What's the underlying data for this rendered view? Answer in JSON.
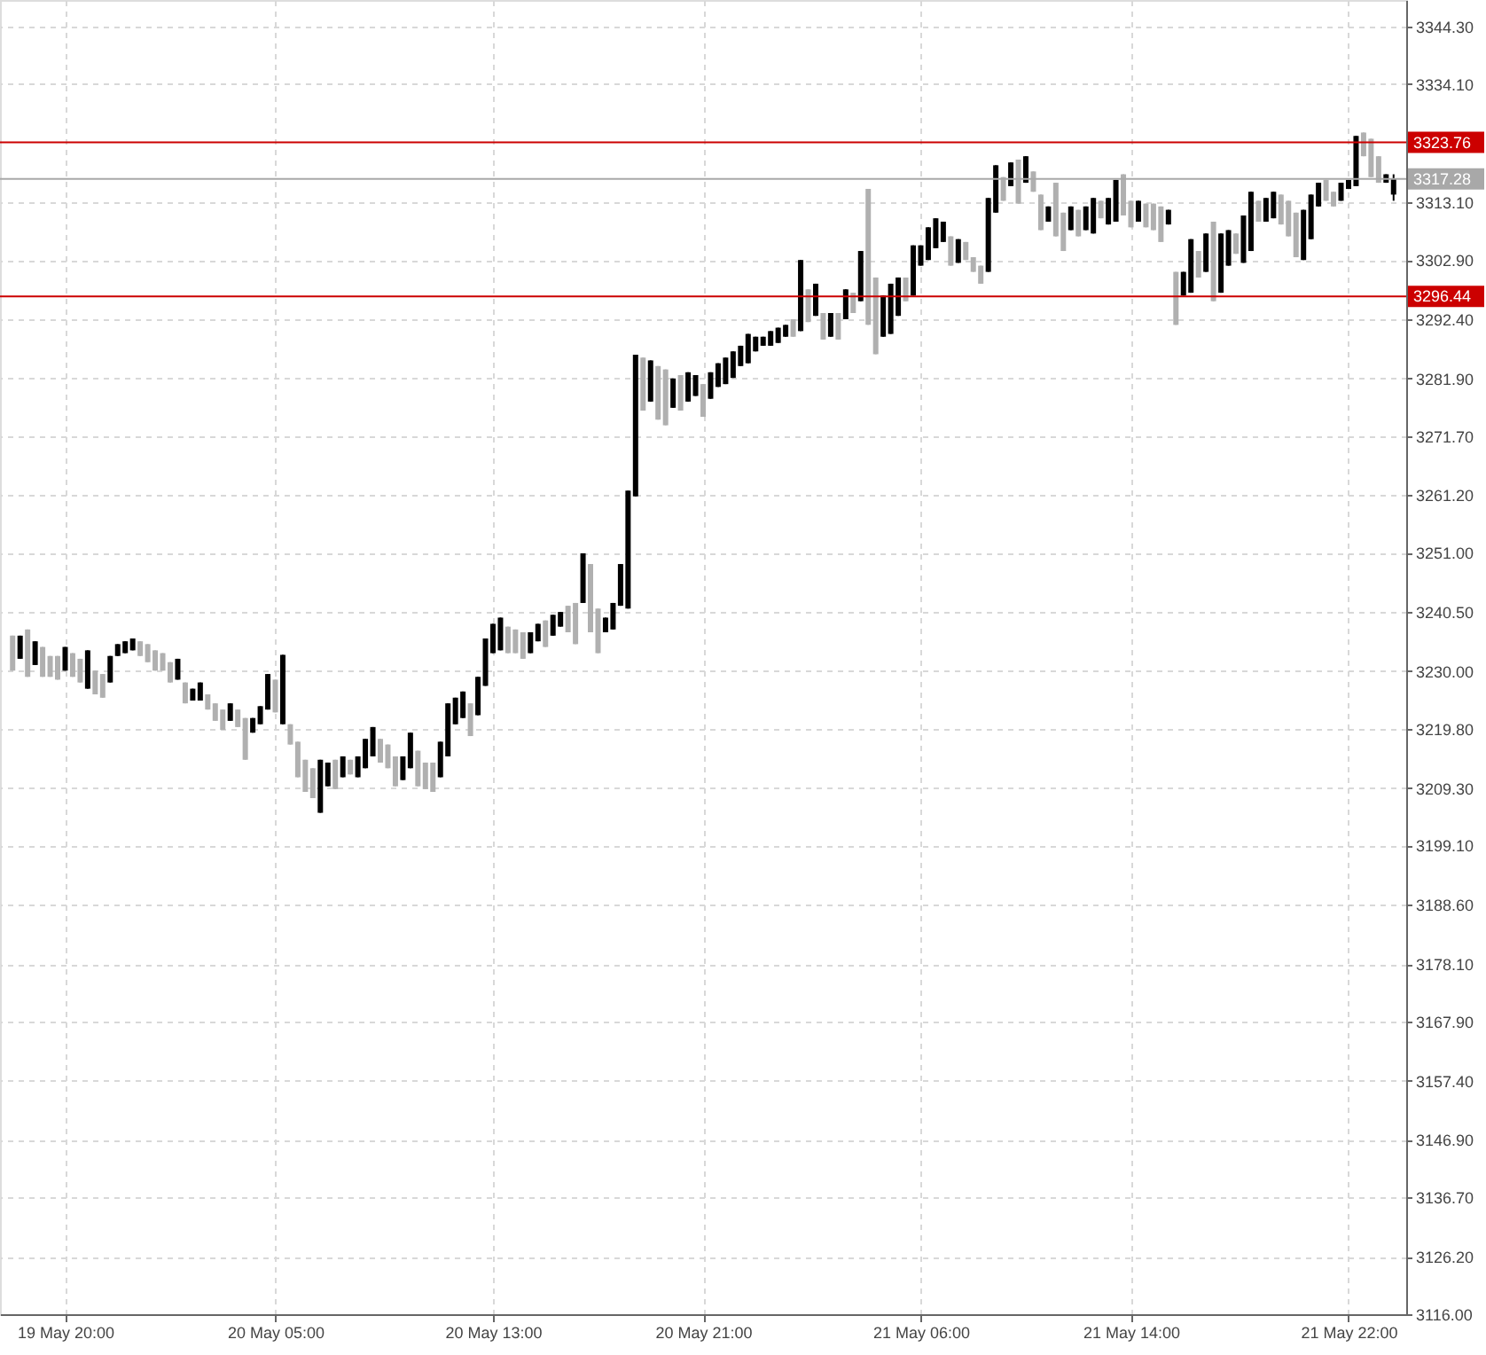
{
  "chart_data": {
    "type": "candlestick",
    "categories": [
      null,
      null,
      null,
      null,
      null,
      null,
      null,
      "19 May 20:00",
      null,
      null,
      null,
      null,
      null,
      null,
      null,
      null,
      null,
      null,
      null,
      null,
      null,
      null,
      null,
      null,
      null,
      null,
      null,
      null,
      null,
      null,
      null,
      null,
      null,
      null,
      null,
      "20 May 05:00",
      null,
      null,
      null,
      null,
      null,
      null,
      null,
      null,
      null,
      null,
      null,
      null,
      null,
      null,
      null,
      null,
      null,
      null,
      null,
      null,
      null,
      null,
      null,
      null,
      null,
      null,
      null,
      null,
      "20 May 13:00",
      null,
      null,
      null,
      null,
      null,
      null,
      null,
      null,
      null,
      null,
      null,
      null,
      null,
      null,
      null,
      null,
      null,
      null,
      null,
      null,
      null,
      null,
      null,
      null,
      null,
      null,
      null,
      "20 May 21:00",
      null,
      null,
      null,
      null,
      null,
      null,
      null,
      null,
      null,
      null,
      null,
      null,
      null,
      null,
      null,
      null,
      null,
      null,
      null,
      null,
      null,
      null,
      null,
      null,
      null,
      null,
      null,
      null,
      "21 May 06:00",
      null,
      null,
      null,
      null,
      null,
      null,
      null,
      null,
      null,
      null,
      null,
      null,
      null,
      null,
      null,
      null,
      null,
      null,
      null,
      null,
      null,
      null,
      null,
      null,
      null,
      null,
      null,
      "21 May 14:00",
      null,
      null,
      null,
      null,
      null,
      null,
      null,
      null,
      null,
      null,
      null,
      null,
      null,
      null,
      null,
      null,
      null,
      null,
      null,
      null,
      null,
      null,
      null,
      null,
      null,
      null,
      null,
      null,
      "21 May 22:00",
      null,
      null,
      null,
      null,
      null,
      null
    ],
    "ohlc": [
      [
        3236.3,
        3236.3,
        3230.1,
        3230.1
      ],
      [
        3232.2,
        3236.3,
        3232.2,
        3236.3
      ],
      [
        3237.4,
        3237.4,
        3229.0,
        3229.0
      ],
      [
        3231.1,
        3235.3,
        3231.1,
        3235.3
      ],
      [
        3234.3,
        3234.3,
        3229.0,
        3229.0
      ],
      [
        3232.7,
        3232.7,
        3229.0,
        3229.0
      ],
      [
        3232.7,
        3232.7,
        3228.5,
        3228.5
      ],
      [
        3230.1,
        3234.3,
        3230.1,
        3234.3
      ],
      [
        3233.2,
        3233.2,
        3229.0,
        3229.0
      ],
      [
        3232.2,
        3232.2,
        3228.0,
        3228.0
      ],
      [
        3226.9,
        3233.7,
        3226.9,
        3233.7
      ],
      [
        3230.1,
        3230.1,
        3225.9,
        3225.9
      ],
      [
        3229.5,
        3229.5,
        3225.3,
        3225.3
      ],
      [
        3228.0,
        3232.7,
        3228.0,
        3232.7
      ],
      [
        3232.7,
        3234.8,
        3232.7,
        3234.8
      ],
      [
        3233.2,
        3235.3,
        3233.2,
        3235.3
      ],
      [
        3233.7,
        3235.8,
        3233.7,
        3235.8
      ],
      [
        3235.3,
        3235.3,
        3232.7,
        3232.7
      ],
      [
        3234.8,
        3234.8,
        3231.6,
        3231.6
      ],
      [
        3233.7,
        3233.7,
        3230.1,
        3230.1
      ],
      [
        3233.2,
        3233.2,
        3230.1,
        3230.1
      ],
      [
        3231.6,
        3231.6,
        3228.0,
        3228.0
      ],
      [
        3228.5,
        3232.2,
        3228.5,
        3232.2
      ],
      [
        3228.0,
        3228.0,
        3224.3,
        3224.3
      ],
      [
        3224.8,
        3226.9,
        3224.8,
        3226.9
      ],
      [
        3224.8,
        3228.0,
        3224.8,
        3228.0
      ],
      [
        3225.9,
        3225.9,
        3223.2,
        3223.2
      ],
      [
        3224.3,
        3224.3,
        3221.2,
        3221.2
      ],
      [
        3223.2,
        3223.2,
        3219.6,
        3219.6
      ],
      [
        3221.2,
        3224.3,
        3221.2,
        3224.3
      ],
      [
        3223.2,
        3223.2,
        3220.1,
        3220.1
      ],
      [
        3221.7,
        3221.7,
        3214.3,
        3214.3
      ],
      [
        3219.1,
        3221.7,
        3219.1,
        3221.7
      ],
      [
        3220.6,
        3223.8,
        3220.6,
        3223.8
      ],
      [
        3223.2,
        3229.5,
        3223.2,
        3229.5
      ],
      [
        3228.5,
        3228.5,
        3222.7,
        3222.7
      ],
      [
        3220.6,
        3232.9,
        3220.6,
        3232.9
      ],
      [
        3220.6,
        3220.6,
        3217.0,
        3217.0
      ],
      [
        3217.5,
        3217.5,
        3211.2,
        3211.2
      ],
      [
        3214.3,
        3214.3,
        3208.6,
        3208.6
      ],
      [
        3212.8,
        3212.8,
        3207.5,
        3207.5
      ],
      [
        3204.9,
        3214.3,
        3204.9,
        3214.3
      ],
      [
        3209.6,
        3213.8,
        3209.6,
        3213.8
      ],
      [
        3214.3,
        3214.3,
        3209.1,
        3209.1
      ],
      [
        3211.2,
        3214.9,
        3211.2,
        3214.9
      ],
      [
        3214.3,
        3214.3,
        3211.7,
        3211.7
      ],
      [
        3211.2,
        3214.9,
        3211.2,
        3214.9
      ],
      [
        3212.8,
        3218.0,
        3212.8,
        3218.0
      ],
      [
        3214.9,
        3220.1,
        3214.9,
        3220.1
      ],
      [
        3218.0,
        3218.0,
        3213.8,
        3213.8
      ],
      [
        3217.0,
        3217.0,
        3212.8,
        3212.8
      ],
      [
        3214.9,
        3214.9,
        3209.6,
        3209.6
      ],
      [
        3210.7,
        3214.9,
        3210.7,
        3214.9
      ],
      [
        3212.8,
        3219.1,
        3212.8,
        3219.1
      ],
      [
        3215.9,
        3215.9,
        3209.6,
        3209.6
      ],
      [
        3213.8,
        3213.8,
        3209.1,
        3209.1
      ],
      [
        3213.8,
        3213.8,
        3208.6,
        3208.6
      ],
      [
        3211.2,
        3217.5,
        3211.2,
        3217.5
      ],
      [
        3214.9,
        3224.3,
        3214.9,
        3224.3
      ],
      [
        3220.6,
        3225.3,
        3220.6,
        3225.3
      ],
      [
        3221.7,
        3226.4,
        3221.7,
        3226.4
      ],
      [
        3224.3,
        3224.3,
        3218.5,
        3218.5
      ],
      [
        3222.2,
        3229.0,
        3222.2,
        3229.0
      ],
      [
        3227.4,
        3235.8,
        3227.4,
        3235.8
      ],
      [
        3233.2,
        3238.4,
        3233.2,
        3238.4
      ],
      [
        3233.7,
        3239.5,
        3233.7,
        3239.5
      ],
      [
        3237.9,
        3237.9,
        3233.2,
        3233.2
      ],
      [
        3237.4,
        3237.4,
        3233.2,
        3233.2
      ],
      [
        3236.9,
        3236.9,
        3232.2,
        3232.2
      ],
      [
        3233.2,
        3236.9,
        3233.2,
        3236.9
      ],
      [
        3235.3,
        3238.4,
        3235.3,
        3238.4
      ],
      [
        3239.0,
        3239.0,
        3234.3,
        3234.3
      ],
      [
        3236.3,
        3240.0,
        3236.3,
        3240.0
      ],
      [
        3237.9,
        3240.5,
        3237.9,
        3240.5
      ],
      [
        3241.6,
        3241.6,
        3236.9,
        3236.9
      ],
      [
        3242.1,
        3242.1,
        3234.8,
        3234.8
      ],
      [
        3242.1,
        3250.9,
        3242.1,
        3250.9
      ],
      [
        3249.0,
        3249.0,
        3236.9,
        3236.9
      ],
      [
        3241.1,
        3241.1,
        3233.2,
        3233.2
      ],
      [
        3236.9,
        3239.5,
        3236.9,
        3239.5
      ],
      [
        3237.4,
        3242.1,
        3237.4,
        3242.1
      ],
      [
        3241.6,
        3249.0,
        3241.6,
        3249.0
      ],
      [
        3241.1,
        3262.0,
        3241.1,
        3262.0
      ],
      [
        3261.0,
        3286.1,
        3261.0,
        3286.1
      ],
      [
        3285.6,
        3285.6,
        3276.2,
        3276.2
      ],
      [
        3277.8,
        3285.1,
        3277.8,
        3285.1
      ],
      [
        3284.1,
        3284.1,
        3274.6,
        3274.6
      ],
      [
        3283.5,
        3283.5,
        3273.6,
        3273.6
      ],
      [
        3276.7,
        3281.9,
        3276.7,
        3281.9
      ],
      [
        3282.5,
        3282.5,
        3276.2,
        3276.2
      ],
      [
        3277.8,
        3283.0,
        3277.8,
        3283.0
      ],
      [
        3278.8,
        3282.5,
        3278.8,
        3282.5
      ],
      [
        3280.9,
        3280.9,
        3275.1,
        3275.1
      ],
      [
        3278.3,
        3283.0,
        3278.3,
        3283.0
      ],
      [
        3280.4,
        3284.6,
        3280.4,
        3284.6
      ],
      [
        3280.9,
        3285.6,
        3280.9,
        3285.6
      ],
      [
        3282.0,
        3286.7,
        3282.0,
        3286.7
      ],
      [
        3284.1,
        3287.7,
        3284.1,
        3287.7
      ],
      [
        3284.6,
        3289.8,
        3284.6,
        3289.8
      ],
      [
        3286.7,
        3289.3,
        3286.7,
        3289.3
      ],
      [
        3287.7,
        3289.3,
        3287.7,
        3289.3
      ],
      [
        3287.7,
        3290.3,
        3287.7,
        3290.3
      ],
      [
        3288.2,
        3290.9,
        3288.2,
        3290.9
      ],
      [
        3289.3,
        3291.4,
        3289.3,
        3291.4
      ],
      [
        3292.4,
        3292.4,
        3289.3,
        3289.3
      ],
      [
        3290.3,
        3302.9,
        3290.3,
        3302.9
      ],
      [
        3297.7,
        3297.7,
        3291.9,
        3291.9
      ],
      [
        3293.0,
        3298.7,
        3293.0,
        3298.7
      ],
      [
        3293.5,
        3293.5,
        3288.8,
        3288.8
      ],
      [
        3289.3,
        3293.5,
        3289.3,
        3293.5
      ],
      [
        3293.5,
        3293.5,
        3288.8,
        3288.8
      ],
      [
        3292.4,
        3297.7,
        3292.4,
        3297.7
      ],
      [
        3297.1,
        3297.1,
        3293.5,
        3293.5
      ],
      [
        3295.6,
        3304.5,
        3295.6,
        3304.5
      ],
      [
        3315.5,
        3315.5,
        3291.4,
        3291.4
      ],
      [
        3299.8,
        3299.8,
        3286.2,
        3286.2
      ],
      [
        3289.3,
        3296.6,
        3289.3,
        3296.6
      ],
      [
        3289.8,
        3298.7,
        3289.8,
        3298.7
      ],
      [
        3293.0,
        3299.8,
        3293.0,
        3299.8
      ],
      [
        3299.8,
        3299.8,
        3295.6,
        3295.6
      ],
      [
        3296.6,
        3305.5,
        3296.6,
        3305.5
      ],
      [
        3301.9,
        3305.5,
        3301.9,
        3305.5
      ],
      [
        3302.9,
        3308.7,
        3302.9,
        3308.7
      ],
      [
        3305.0,
        3310.3,
        3305.0,
        3310.3
      ],
      [
        3306.1,
        3309.7,
        3306.1,
        3309.7
      ],
      [
        3307.1,
        3307.1,
        3301.9,
        3301.9
      ],
      [
        3302.4,
        3306.6,
        3302.4,
        3306.6
      ],
      [
        3306.1,
        3306.1,
        3302.9,
        3302.9
      ],
      [
        3303.4,
        3303.4,
        3300.8,
        3300.8
      ],
      [
        3301.9,
        3301.9,
        3298.7,
        3298.7
      ],
      [
        3300.8,
        3313.9,
        3300.8,
        3313.9
      ],
      [
        3311.3,
        3319.7,
        3311.3,
        3319.7
      ],
      [
        3317.6,
        3317.6,
        3313.4,
        3313.4
      ],
      [
        3316.0,
        3320.2,
        3316.0,
        3320.2
      ],
      [
        3320.7,
        3320.7,
        3312.9,
        3312.9
      ],
      [
        3316.6,
        3321.3,
        3316.6,
        3321.3
      ],
      [
        3318.6,
        3318.6,
        3315.0,
        3315.0
      ],
      [
        3314.5,
        3314.5,
        3308.2,
        3308.2
      ],
      [
        3309.7,
        3312.4,
        3309.7,
        3312.4
      ],
      [
        3316.6,
        3316.6,
        3307.1,
        3307.1
      ],
      [
        3311.3,
        3311.3,
        3304.5,
        3304.5
      ],
      [
        3308.2,
        3312.4,
        3308.2,
        3312.4
      ],
      [
        3311.8,
        3311.8,
        3307.1,
        3307.1
      ],
      [
        3308.2,
        3312.4,
        3308.2,
        3312.4
      ],
      [
        3307.6,
        3313.9,
        3307.6,
        3313.9
      ],
      [
        3313.4,
        3313.4,
        3310.3,
        3310.3
      ],
      [
        3309.2,
        3313.9,
        3309.2,
        3313.9
      ],
      [
        3309.7,
        3317.1,
        3309.7,
        3317.1
      ],
      [
        3318.1,
        3318.1,
        3310.8,
        3310.8
      ],
      [
        3313.4,
        3313.4,
        3308.7,
        3308.7
      ],
      [
        3309.7,
        3313.4,
        3309.7,
        3313.4
      ],
      [
        3312.9,
        3312.9,
        3308.7,
        3308.7
      ],
      [
        3312.9,
        3312.9,
        3308.2,
        3308.2
      ],
      [
        3312.4,
        3312.4,
        3306.1,
        3306.1
      ],
      [
        3309.2,
        3311.8,
        3309.2,
        3311.8
      ],
      [
        3300.8,
        3300.8,
        3291.4,
        3291.4
      ],
      [
        3296.6,
        3300.8,
        3296.6,
        3300.8
      ],
      [
        3297.1,
        3306.6,
        3297.1,
        3306.6
      ],
      [
        3304.5,
        3304.5,
        3299.8,
        3299.8
      ],
      [
        3300.8,
        3307.6,
        3300.8,
        3307.6
      ],
      [
        3309.7,
        3309.7,
        3295.6,
        3295.6
      ],
      [
        3297.1,
        3307.6,
        3297.1,
        3307.6
      ],
      [
        3301.9,
        3308.2,
        3301.9,
        3308.2
      ],
      [
        3307.6,
        3307.6,
        3304.0,
        3304.0
      ],
      [
        3302.4,
        3310.8,
        3302.4,
        3310.8
      ],
      [
        3304.5,
        3315.0,
        3304.5,
        3315.0
      ],
      [
        3313.4,
        3313.4,
        3309.7,
        3309.7
      ],
      [
        3309.7,
        3313.9,
        3309.7,
        3313.9
      ],
      [
        3310.3,
        3315.0,
        3310.3,
        3315.0
      ],
      [
        3314.5,
        3314.5,
        3309.2,
        3309.2
      ],
      [
        3313.4,
        3313.4,
        3307.1,
        3307.1
      ],
      [
        3311.3,
        3311.3,
        3303.4,
        3303.4
      ],
      [
        3302.9,
        3311.8,
        3302.9,
        3311.8
      ],
      [
        3306.6,
        3314.5,
        3306.6,
        3314.5
      ],
      [
        3312.4,
        3316.6,
        3312.4,
        3316.6
      ],
      [
        3317.1,
        3317.1,
        3313.4,
        3313.4
      ],
      [
        3315.0,
        3315.0,
        3312.4,
        3312.4
      ],
      [
        3313.4,
        3316.6,
        3313.4,
        3316.6
      ],
      [
        3315.5,
        3317.1,
        3315.5,
        3317.1
      ],
      [
        3316.0,
        3324.9,
        3316.0,
        3324.9
      ],
      [
        3325.5,
        3325.5,
        3321.3,
        3321.3
      ],
      [
        3324.4,
        3324.4,
        3317.6,
        3317.6
      ],
      [
        3321.3,
        3321.3,
        3316.6,
        3316.6
      ],
      [
        3316.6,
        3318.1,
        3316.6,
        3318.1
      ],
      [
        3314.5,
        3318.1,
        3313.4,
        3317.3
      ]
    ],
    "colors": [
      "#b0b0b0",
      "#000000",
      "#b0b0b0",
      "#000000",
      "#b0b0b0",
      "#b0b0b0",
      "#b0b0b0",
      "#000000",
      "#b0b0b0",
      "#b0b0b0",
      "#000000",
      "#b0b0b0",
      "#b0b0b0",
      "#000000",
      "#000000",
      "#000000",
      "#000000",
      "#b0b0b0",
      "#b0b0b0",
      "#b0b0b0",
      "#b0b0b0",
      "#b0b0b0",
      "#000000",
      "#b0b0b0",
      "#000000",
      "#000000",
      "#b0b0b0",
      "#b0b0b0",
      "#b0b0b0",
      "#000000",
      "#b0b0b0",
      "#b0b0b0",
      "#000000",
      "#000000",
      "#000000",
      "#b0b0b0",
      "#000000",
      "#b0b0b0",
      "#b0b0b0",
      "#b0b0b0",
      "#b0b0b0",
      "#000000",
      "#000000",
      "#b0b0b0",
      "#000000",
      "#b0b0b0",
      "#000000",
      "#000000",
      "#000000",
      "#b0b0b0",
      "#b0b0b0",
      "#b0b0b0",
      "#000000",
      "#000000",
      "#b0b0b0",
      "#b0b0b0",
      "#b0b0b0",
      "#000000",
      "#000000",
      "#000000",
      "#000000",
      "#b0b0b0",
      "#000000",
      "#000000",
      "#000000",
      "#000000",
      "#b0b0b0",
      "#b0b0b0",
      "#b0b0b0",
      "#000000",
      "#000000",
      "#b0b0b0",
      "#000000",
      "#000000",
      "#b0b0b0",
      "#b0b0b0",
      "#000000",
      "#b0b0b0",
      "#b0b0b0",
      "#000000",
      "#000000",
      "#000000",
      "#000000",
      "#000000",
      "#b0b0b0",
      "#000000",
      "#b0b0b0",
      "#b0b0b0",
      "#000000",
      "#b0b0b0",
      "#000000",
      "#000000",
      "#b0b0b0",
      "#000000",
      "#000000",
      "#000000",
      "#000000",
      "#000000",
      "#000000",
      "#000000",
      "#000000",
      "#000000",
      "#000000",
      "#000000",
      "#b0b0b0",
      "#000000",
      "#b0b0b0",
      "#000000",
      "#b0b0b0",
      "#000000",
      "#b0b0b0",
      "#000000",
      "#b0b0b0",
      "#000000",
      "#b0b0b0",
      "#b0b0b0",
      "#000000",
      "#000000",
      "#000000",
      "#b0b0b0",
      "#000000",
      "#000000",
      "#000000",
      "#000000",
      "#000000",
      "#b0b0b0",
      "#000000",
      "#b0b0b0",
      "#b0b0b0",
      "#b0b0b0",
      "#000000",
      "#000000",
      "#b0b0b0",
      "#000000",
      "#b0b0b0",
      "#000000",
      "#b0b0b0",
      "#b0b0b0",
      "#000000",
      "#b0b0b0",
      "#b0b0b0",
      "#000000",
      "#b0b0b0",
      "#000000",
      "#000000",
      "#b0b0b0",
      "#000000",
      "#000000",
      "#b0b0b0",
      "#b0b0b0",
      "#000000",
      "#b0b0b0",
      "#b0b0b0",
      "#b0b0b0",
      "#000000",
      "#b0b0b0",
      "#000000",
      "#000000",
      "#b0b0b0",
      "#000000",
      "#b0b0b0",
      "#000000",
      "#000000",
      "#b0b0b0",
      "#000000",
      "#000000",
      "#b0b0b0",
      "#000000",
      "#000000",
      "#b0b0b0",
      "#b0b0b0",
      "#b0b0b0",
      "#000000",
      "#000000",
      "#000000",
      "#b0b0b0",
      "#b0b0b0",
      "#000000",
      "#000000",
      "#000000",
      "#b0b0b0",
      "#b0b0b0",
      "#b0b0b0",
      "#000000",
      "#000000"
    ],
    "ylim": [
      3116.0,
      3349.0
    ],
    "yticks": [
      {
        "value": 3116.0,
        "label": "3116.00"
      },
      {
        "value": 3126.2,
        "label": "3126.20"
      },
      {
        "value": 3136.7,
        "label": "3136.70"
      },
      {
        "value": 3146.9,
        "label": "3146.90"
      },
      {
        "value": 3157.4,
        "label": "3157.40"
      },
      {
        "value": 3167.9,
        "label": "3167.90"
      },
      {
        "value": 3178.1,
        "label": "3178.10"
      },
      {
        "value": 3188.6,
        "label": "3188.60"
      },
      {
        "value": 3199.1,
        "label": "3199.10"
      },
      {
        "value": 3209.3,
        "label": "3209.30"
      },
      {
        "value": 3219.8,
        "label": "3219.80"
      },
      {
        "value": 3230.0,
        "label": "3230.00"
      },
      {
        "value": 3240.5,
        "label": "3240.50"
      },
      {
        "value": 3251.0,
        "label": "3251.00"
      },
      {
        "value": 3261.2,
        "label": "3261.20"
      },
      {
        "value": 3271.7,
        "label": "3271.70"
      },
      {
        "value": 3281.9,
        "label": "3281.90"
      },
      {
        "value": 3292.4,
        "label": "3292.40"
      },
      {
        "value": 3302.9,
        "label": "3302.90"
      },
      {
        "value": 3313.1,
        "label": "3313.10"
      },
      {
        "value": 3334.1,
        "label": "3334.10"
      },
      {
        "value": 3344.3,
        "label": "3344.30"
      }
    ],
    "grid": true,
    "ref_lines": [
      {
        "axis": "y",
        "value": 3323.76,
        "label": "3323.76",
        "color": "#cc0000"
      },
      {
        "axis": "y",
        "value": 3296.44,
        "label": "3296.44",
        "color": "#cc0000"
      },
      {
        "axis": "y",
        "value": 3317.28,
        "label": "3317.28",
        "color": "#a8a8a8"
      }
    ]
  }
}
